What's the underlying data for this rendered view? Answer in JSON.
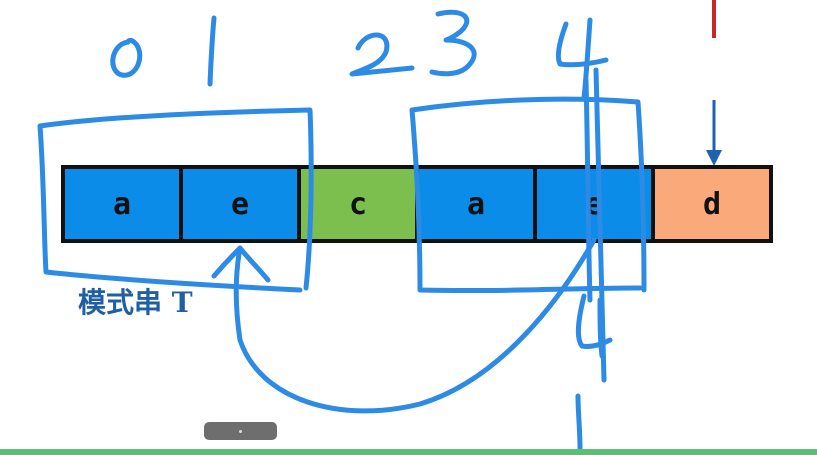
{
  "colors": {
    "blue_cell": "#0a8ce8",
    "green_cell": "#7cbf4f",
    "orange_cell": "#f9a97a",
    "border": "#111111",
    "ink": "#2d8be6",
    "arrow": "#1f62b0",
    "red_mark": "#c62828"
  },
  "pattern": {
    "cells": [
      {
        "char": "a",
        "color": "#0a8ce8"
      },
      {
        "char": "e",
        "color": "#0a8ce8"
      },
      {
        "char": "c",
        "color": "#7cbf4f"
      },
      {
        "char": "a",
        "color": "#0a8ce8"
      },
      {
        "char": "e",
        "color": "#0a8ce8"
      },
      {
        "char": "d",
        "color": "#f9a97a"
      }
    ],
    "label": "模式串 T"
  },
  "annotations": {
    "index_0": "0",
    "index_1": "1",
    "index_23": "23",
    "index_4": "4",
    "number_4_lower": "4"
  }
}
